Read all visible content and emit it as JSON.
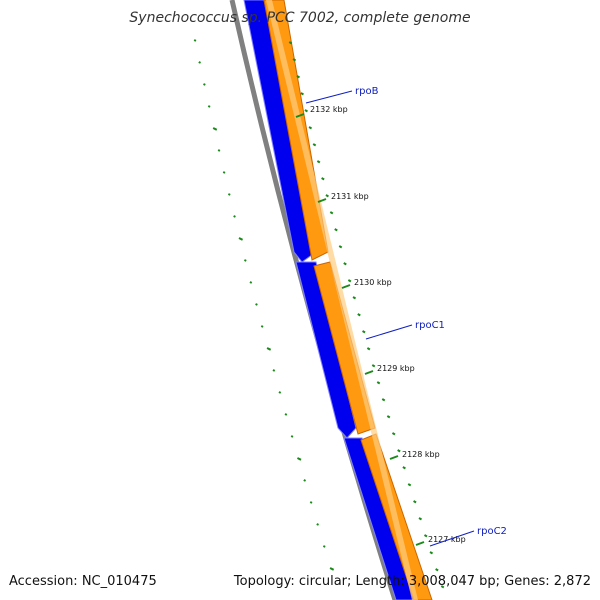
{
  "title": "Synechococcus sp. PCC 7002, complete genome",
  "accession": "Accession: NC_010475",
  "summary": "Topology: circular; Length: 3,008,047 bp; Genes: 2,872",
  "colors": {
    "forward_strand": "#ff8c00",
    "forward_strand_light": "#ffc060",
    "reverse_strand": "#0000ee",
    "backbone": "#808080",
    "gc_skew": "#1a8a1a",
    "label_line": "#1020c0"
  },
  "ticks": [
    {
      "label": "2132 kbp"
    },
    {
      "label": "2131 kbp"
    },
    {
      "label": "2130 kbp"
    },
    {
      "label": "2129 kbp"
    },
    {
      "label": "2128 kbp"
    },
    {
      "label": "2127 kbp"
    }
  ],
  "genes": [
    {
      "name": "rpoB"
    },
    {
      "name": "rpoC1"
    },
    {
      "name": "rpoC2"
    }
  ]
}
